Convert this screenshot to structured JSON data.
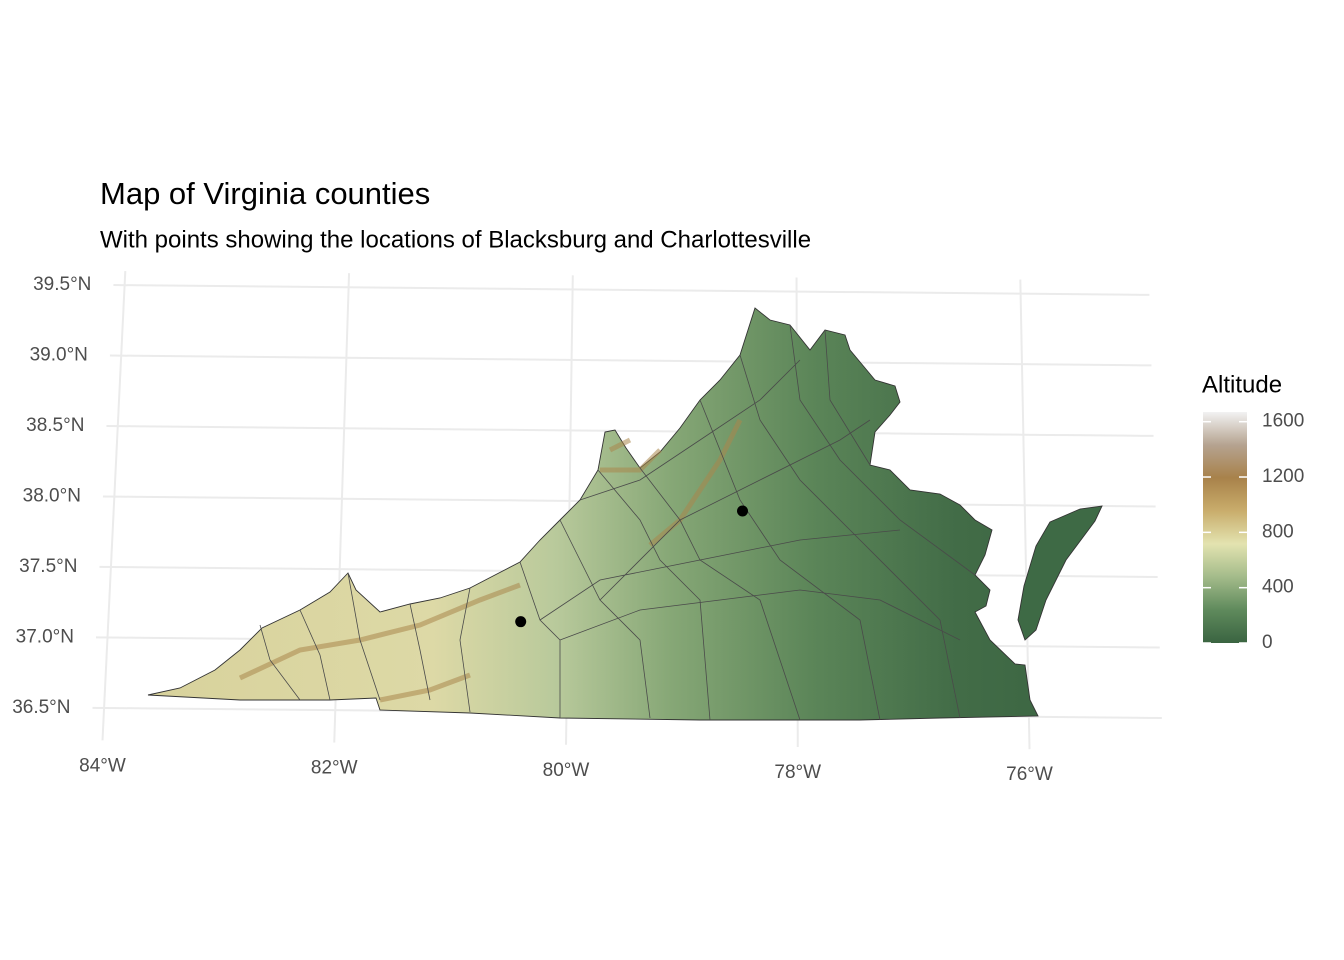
{
  "chart_data": {
    "type": "map",
    "title": "Map of Virginia counties",
    "subtitle": "With points showing the locations of Blacksburg and Charlottesville",
    "x": [
      -80.41,
      -78.48
    ],
    "y": [
      37.14,
      37.94
    ],
    "point_color": "#000000",
    "xlim": [
      -84.1,
      -74.85
    ],
    "ylim": [
      36.27,
      39.6
    ],
    "xticks": [
      {
        "value": -84,
        "label": "84°W"
      },
      {
        "value": -82,
        "label": "82°W"
      },
      {
        "value": -80,
        "label": "80°W"
      },
      {
        "value": -78,
        "label": "78°W"
      },
      {
        "value": -76,
        "label": "76°W"
      }
    ],
    "yticks": [
      {
        "value": 36.5,
        "label": "36.5°N"
      },
      {
        "value": 37.0,
        "label": "37.0°N"
      },
      {
        "value": 37.5,
        "label": "37.5°N"
      },
      {
        "value": 38.0,
        "label": "38.0°N"
      },
      {
        "value": 38.5,
        "label": "38.5°N"
      },
      {
        "value": 39.0,
        "label": "39.0°N"
      },
      {
        "value": 39.5,
        "label": "39.5°N"
      }
    ],
    "grid": true,
    "grid_color": "#ebebeb",
    "legend": {
      "title": "Altitude",
      "lim": [
        0,
        1670
      ],
      "ticks": [
        0,
        400,
        800,
        1200,
        1600
      ],
      "colors": [
        "#3a6441",
        "#5f8a5c",
        "#a3bb8a",
        "#e3e3b0",
        "#c9ad6c",
        "#a8824a",
        "#b5a390",
        "#f2f2f2"
      ]
    }
  }
}
